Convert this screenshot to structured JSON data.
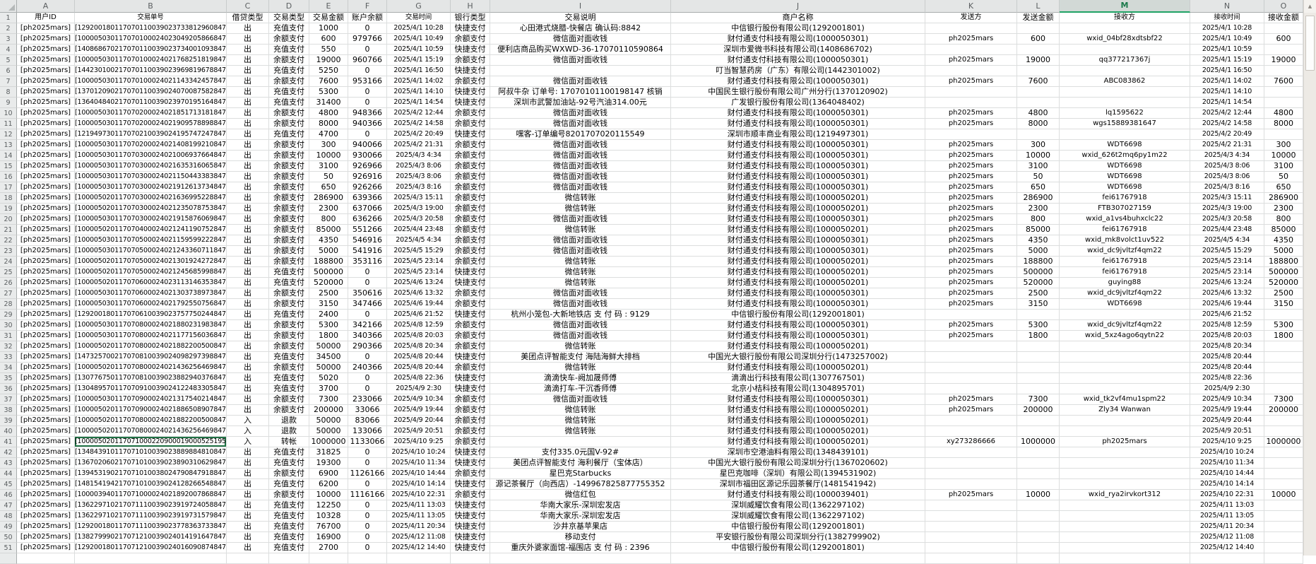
{
  "app": {
    "type": "spreadsheet-grid"
  },
  "icons": {
    "scroll_up": "▲",
    "select_all_triangle": "◢"
  },
  "colors": {
    "selected_column_accent": "#21A366",
    "active_cell_border": "#217346",
    "header_bg": "#E4E6E6",
    "gridline": "#DCDEDE"
  },
  "selection": {
    "highlighted_column": "M",
    "active_cell": "B41"
  },
  "columns": [
    {
      "letter": "A",
      "label": "用户ID"
    },
    {
      "letter": "B",
      "label": "交易单号"
    },
    {
      "letter": "C",
      "label": "借贷类型"
    },
    {
      "letter": "D",
      "label": "交易类型"
    },
    {
      "letter": "E",
      "label": "交易金额"
    },
    {
      "letter": "F",
      "label": "账户余额"
    },
    {
      "letter": "G",
      "label": "交易时间"
    },
    {
      "letter": "H",
      "label": "银行类型"
    },
    {
      "letter": "I",
      "label": "交易说明"
    },
    {
      "letter": "J",
      "label": "商户名称"
    },
    {
      "letter": "K",
      "label": "发送方"
    },
    {
      "letter": "L",
      "label": "发送金额"
    },
    {
      "letter": "M",
      "label": "接收方"
    },
    {
      "letter": "N",
      "label": "接收时间"
    },
    {
      "letter": "O",
      "label": "接收金额"
    }
  ],
  "first_data_row_number": 2,
  "rows": [
    [
      "[ph2025mars]",
      "[129200180117070110039023733812960847]",
      "出",
      "充值支付",
      "1000",
      "0",
      "2025/4/1 10:28",
      "快捷支付",
      "心田港式烧腊-快餐店 确认码:8842",
      "中信银行股份有限公司(1292001801)",
      "",
      "",
      "",
      "2025/4/1 10:28",
      ""
    ],
    [
      "[ph2025mars]",
      "[100005030117070100024023049205866847]",
      "出",
      "余额支付",
      "600",
      "979766",
      "2025/4/1 10:49",
      "余额支付",
      "微信面对面收钱",
      "财付通支付科技有限公司(1000050301)",
      "ph2025mars",
      "600",
      "wxid_04bf28xdtsbf22",
      "2025/4/1 10:49",
      "600"
    ],
    [
      "[ph2025mars]",
      "[140868670217070110039023734001093847]",
      "出",
      "充值支付",
      "550",
      "0",
      "2025/4/1 10:59",
      "快捷支付",
      "便利店商品购买WXWD-36-17070110590864",
      "深圳市爱微书科技有限公司(1408686702)",
      "",
      "",
      "",
      "2025/4/1 10:59",
      ""
    ],
    [
      "[ph2025mars]",
      "[100005030117070100024021768251819847]",
      "出",
      "余额支付",
      "19000",
      "960766",
      "2025/4/1 15:19",
      "余额支付",
      "微信面对面收钱",
      "财付通支付科技有限公司(1000050301)",
      "ph2025mars",
      "19000",
      "qq377217367j",
      "2025/4/1 15:19",
      "19000"
    ],
    [
      "[ph2025mars]",
      "[144230100217070110039023969819678847]",
      "出",
      "充值支付",
      "5250",
      "0",
      "2025/4/1 16:50",
      "快捷支付",
      "",
      "叮当智慧药房（广东）有限公司(1442301002)",
      "",
      "",
      "",
      "2025/4/1 16:50",
      ""
    ],
    [
      "[ph2025mars]",
      "[100005030117070100024021143342457847]",
      "出",
      "余额支付",
      "7600",
      "953166",
      "2025/4/1 14:02",
      "余额支付",
      "微信面对面收钱",
      "财付通支付科技有限公司(1000050301)",
      "ph2025mars",
      "7600",
      "ABC083862",
      "2025/4/1 14:02",
      "7600"
    ],
    [
      "[ph2025mars]",
      "[137012090217070110039024070087582847]",
      "出",
      "充值支付",
      "5300",
      "0",
      "2025/4/1 14:10",
      "快捷支付",
      "阿叔牛杂 订单号: 17070101100198147 核销",
      "中国民生银行股份有限公司广州分行(1370120902)",
      "",
      "",
      "",
      "2025/4/1 14:10",
      ""
    ],
    [
      "[ph2025mars]",
      "[136404840217070110039023970195164847]",
      "出",
      "充值支付",
      "31400",
      "0",
      "2025/4/1 14:54",
      "快捷支付",
      "深圳市武警加油站-92号汽油314.00元",
      "广发银行股份有限公司(1364048402)",
      "",
      "",
      "",
      "2025/4/1 14:54",
      ""
    ],
    [
      "[ph2025mars]",
      "[100005030117070200024021851713181847]",
      "出",
      "余额支付",
      "4800",
      "948366",
      "2025/4/2 12:44",
      "余额支付",
      "微信面对面收钱",
      "财付通支付科技有限公司(1000050301)",
      "ph2025mars",
      "4800",
      "lq1595622",
      "2025/4/2 12:44",
      "4800"
    ],
    [
      "[ph2025mars]",
      "[100005030117070200024021909578898847]",
      "出",
      "余额支付",
      "8000",
      "940366",
      "2025/4/2 14:58",
      "余额支付",
      "微信面对面收钱",
      "财付通支付科技有限公司(1000050301)",
      "ph2025mars",
      "8000",
      "wgs15889381647",
      "2025/4/2 14:58",
      "8000"
    ],
    [
      "[ph2025mars]",
      "[121949730117070210039024195747247847]",
      "出",
      "充值支付",
      "4700",
      "0",
      "2025/4/2 20:49",
      "快捷支付",
      "嘿客-订单编号8201707020115549",
      "深圳市顺丰商业有限公司(1219497301)",
      "",
      "",
      "",
      "2025/4/2 20:49",
      ""
    ],
    [
      "[ph2025mars]",
      "[100005030117070200024021408199210847]",
      "出",
      "余额支付",
      "300",
      "940066",
      "2025/4/2 21:31",
      "余额支付",
      "微信面对面收钱",
      "财付通支付科技有限公司(1000050301)",
      "ph2025mars",
      "300",
      "WDT6698",
      "2025/4/2 21:31",
      "300"
    ],
    [
      "[ph2025mars]",
      "[100005030117070300024021006937664847]",
      "出",
      "余额支付",
      "10000",
      "930066",
      "2025/4/3 4:34",
      "余额支付",
      "微信面对面收钱",
      "财付通支付科技有限公司(1000050301)",
      "ph2025mars",
      "10000",
      "wxid_626t2mq6py1m22",
      "2025/4/3 4:34",
      "10000"
    ],
    [
      "[ph2025mars]",
      "[100005030117070300024021635316065847]",
      "出",
      "余额支付",
      "3100",
      "926966",
      "2025/4/3 8:06",
      "余额支付",
      "微信面对面收钱",
      "财付通支付科技有限公司(1000050301)",
      "ph2025mars",
      "3100",
      "WDT6698",
      "2025/4/3 8:06",
      "3100"
    ],
    [
      "[ph2025mars]",
      "[100005030117070300024021150443383847]",
      "出",
      "余额支付",
      "50",
      "926916",
      "2025/4/3 8:06",
      "余额支付",
      "微信面对面收钱",
      "财付通支付科技有限公司(1000050301)",
      "ph2025mars",
      "50",
      "WDT6698",
      "2025/4/3 8:06",
      "50"
    ],
    [
      "[ph2025mars]",
      "[100005030117070300024021912613734847]",
      "出",
      "余额支付",
      "650",
      "926266",
      "2025/4/3 8:16",
      "余额支付",
      "微信面对面收钱",
      "财付通支付科技有限公司(1000050301)",
      "ph2025mars",
      "650",
      "WDT6698",
      "2025/4/3 8:16",
      "650"
    ],
    [
      "[ph2025mars]",
      "[100005020117070300024021636995228847]",
      "出",
      "余额支付",
      "286900",
      "639366",
      "2025/4/3 15:11",
      "余额支付",
      "微信转账",
      "财付通支付科技有限公司(1000050201)",
      "ph2025mars",
      "286900",
      "fei61767918",
      "2025/4/3 15:11",
      "286900"
    ],
    [
      "[ph2025mars]",
      "[100005020117070300024021235078753847]",
      "出",
      "余额支付",
      "2300",
      "637066",
      "2025/4/3 19:00",
      "余额支付",
      "微信转账",
      "财付通支付科技有限公司(1000050201)",
      "ph2025mars",
      "2300",
      "FTB307027159",
      "2025/4/3 19:00",
      "2300"
    ],
    [
      "[ph2025mars]",
      "[100005030117070300024021915876069847]",
      "出",
      "余额支付",
      "800",
      "636266",
      "2025/4/3 20:58",
      "余额支付",
      "微信面对面收钱",
      "财付通支付科技有限公司(1000050301)",
      "ph2025mars",
      "800",
      "wxid_a1vs4buhxclc22",
      "2025/4/3 20:58",
      "800"
    ],
    [
      "[ph2025mars]",
      "[100005020117070400024021241190752847]",
      "出",
      "余额支付",
      "85000",
      "551266",
      "2025/4/4 23:48",
      "余额支付",
      "微信转账",
      "财付通支付科技有限公司(1000050201)",
      "ph2025mars",
      "85000",
      "fei61767918",
      "2025/4/4 23:48",
      "85000"
    ],
    [
      "[ph2025mars]",
      "[100005030117070500024021159599222847]",
      "出",
      "余额支付",
      "4350",
      "546916",
      "2025/4/5 4:34",
      "余额支付",
      "微信面对面收钱",
      "财付通支付科技有限公司(1000050301)",
      "ph2025mars",
      "4350",
      "wxid_mk8volct1uv522",
      "2025/4/5 4:34",
      "4350"
    ],
    [
      "[ph2025mars]",
      "[100005030117070500024021243360711847]",
      "出",
      "余额支付",
      "5000",
      "541916",
      "2025/4/5 15:29",
      "余额支付",
      "微信面对面收钱",
      "财付通支付科技有限公司(1000050301)",
      "ph2025mars",
      "5000",
      "wxid_dc9jvltzf4qm22",
      "2025/4/5 15:29",
      "5000"
    ],
    [
      "[ph2025mars]",
      "[100005020117070500024021301924272847]",
      "出",
      "余额支付",
      "188800",
      "353116",
      "2025/4/5 23:14",
      "余额支付",
      "微信转账",
      "财付通支付科技有限公司(1000050201)",
      "ph2025mars",
      "188800",
      "fei61767918",
      "2025/4/5 23:14",
      "188800"
    ],
    [
      "[ph2025mars]",
      "[100005020117070500024021245685998847]",
      "出",
      "充值支付",
      "500000",
      "0",
      "2025/4/5 23:14",
      "快捷支付",
      "微信转账",
      "财付通支付科技有限公司(1000050201)",
      "ph2025mars",
      "500000",
      "fei61767918",
      "2025/4/5 23:14",
      "500000"
    ],
    [
      "[ph2025mars]",
      "[100005020117070600024023113146353847]",
      "出",
      "充值支付",
      "520000",
      "0",
      "2025/4/6 13:24",
      "快捷支付",
      "微信转账",
      "财付通支付科技有限公司(1000050201)",
      "ph2025mars",
      "520000",
      "guying88",
      "2025/4/6 13:24",
      "520000"
    ],
    [
      "[ph2025mars]",
      "[100005030117070600024021303738973847]",
      "出",
      "余额支付",
      "2500",
      "350616",
      "2025/4/6 13:32",
      "余额支付",
      "微信面对面收钱",
      "财付通支付科技有限公司(1000050301)",
      "ph2025mars",
      "2500",
      "wxid_dc9jvltzf4qm22",
      "2025/4/6 13:32",
      "2500"
    ],
    [
      "[ph2025mars]",
      "[100005030117070600024021792550756847]",
      "出",
      "余额支付",
      "3150",
      "347466",
      "2025/4/6 19:44",
      "余额支付",
      "微信面对面收钱",
      "财付通支付科技有限公司(1000050301)",
      "ph2025mars",
      "3150",
      "WDT6698",
      "2025/4/6 19:44",
      "3150"
    ],
    [
      "[ph2025mars]",
      "[129200180117070610039023757750244847]",
      "出",
      "充值支付",
      "2400",
      "0",
      "2025/4/6 21:52",
      "快捷支付",
      "杭州小笼包-大新地铁店 支 付 码 : 9129",
      "中信银行股份有限公司(1292001801)",
      "",
      "",
      "",
      "2025/4/6 21:52",
      ""
    ],
    [
      "[ph2025mars]",
      "[100005030117070800024021880231983847]",
      "出",
      "余额支付",
      "5300",
      "342166",
      "2025/4/8 12:59",
      "余额支付",
      "微信面对面收钱",
      "财付通支付科技有限公司(1000050301)",
      "ph2025mars",
      "5300",
      "wxid_dc9jvltzf4qm22",
      "2025/4/8 12:59",
      "5300"
    ],
    [
      "[ph2025mars]",
      "[100005030117070800024021177156036847]",
      "出",
      "余额支付",
      "1800",
      "340366",
      "2025/4/8 20:03",
      "余额支付",
      "微信面对面收钱",
      "财付通支付科技有限公司(1000050301)",
      "ph2025mars",
      "1800",
      "wxid_5xz4ago6qytn22",
      "2025/4/8 20:03",
      "1800"
    ],
    [
      "[ph2025mars]",
      "[100005020117070800024021882200500847]",
      "出",
      "余额支付",
      "50000",
      "290366",
      "2025/4/8 20:34",
      "余额支付",
      "微信转账",
      "财付通支付科技有限公司(1000050201)",
      "",
      "",
      "",
      "2025/4/8 20:34",
      ""
    ],
    [
      "[ph2025mars]",
      "[147325700217070810039024098297398847]",
      "出",
      "充值支付",
      "34500",
      "0",
      "2025/4/8 20:44",
      "快捷支付",
      "美团点评智能支付 海陆海鲜大排档",
      "中国光大银行股份有限公司深圳分行(1473257002)",
      "",
      "",
      "",
      "2025/4/8 20:44",
      ""
    ],
    [
      "[ph2025mars]",
      "[100005020117070800024021436256469847]",
      "出",
      "余额支付",
      "50000",
      "240366",
      "2025/4/8 20:44",
      "余额支付",
      "微信转账",
      "财付通支付科技有限公司(1000050201)",
      "",
      "",
      "",
      "2025/4/8 20:44",
      ""
    ],
    [
      "[ph2025mars]",
      "[130776750117070810039023882940376847]",
      "出",
      "充值支付",
      "5020",
      "0",
      "2025/4/8 22:36",
      "快捷支付",
      "滴滴快车-阙加晟师傅",
      "滴滴出行科技有限公司(1307767501)",
      "",
      "",
      "",
      "2025/4/8 22:36",
      ""
    ],
    [
      "[ph2025mars]",
      "[130489570117070910039024122483305847]",
      "出",
      "充值支付",
      "3700",
      "0",
      "2025/4/9 2:30",
      "快捷支付",
      "滴滴打车-干沉香师傅",
      "北京小桔科技有限公司(1304895701)",
      "",
      "",
      "",
      "2025/4/9 2:30",
      ""
    ],
    [
      "[ph2025mars]",
      "[100005030117070900024021317540214847]",
      "出",
      "余额支付",
      "7300",
      "233066",
      "2025/4/9 10:34",
      "余额支付",
      "微信面对面收钱",
      "财付通支付科技有限公司(1000050301)",
      "ph2025mars",
      "7300",
      "wxid_tk2vf4mu1spm22",
      "2025/4/9 10:34",
      "7300"
    ],
    [
      "[ph2025mars]",
      "[100005020117070900024021886508907847]",
      "出",
      "余额支付",
      "200000",
      "33066",
      "2025/4/9 19:44",
      "余额支付",
      "微信转账",
      "财付通支付科技有限公司(1000050201)",
      "ph2025mars",
      "200000",
      "Zly34 Wanwan",
      "2025/4/9 19:44",
      "200000"
    ],
    [
      "[ph2025mars]",
      "[100005020117070800024021882200500847]",
      "入",
      "退款",
      "50000",
      "83066",
      "2025/4/9 20:44",
      "余额支付",
      "微信转账",
      "财付通支付科技有限公司(1000050201)",
      "",
      "",
      "",
      "2025/4/9 20:44",
      ""
    ],
    [
      "[ph2025mars]",
      "[100005020117070800024021436256469847]",
      "入",
      "退款",
      "50000",
      "133066",
      "2025/4/9 20:51",
      "余额支付",
      "微信转账",
      "财付通支付科技有限公司(1000050201)",
      "",
      "",
      "",
      "2025/4/9 20:51",
      ""
    ],
    [
      "[ph2025mars]",
      "[1000050201170710002209000190005251956847]",
      "入",
      "转帐",
      "1000000",
      "1133066",
      "2025/4/10 9:25",
      "余额支付",
      "",
      "财付通支付科技有限公司(1000050201)",
      "xy273286666",
      "1000000",
      "ph2025mars",
      "2025/4/10 9:25",
      "1000000"
    ],
    [
      "[ph2025mars]",
      "[134843910117071010039023889884810847]",
      "出",
      "充值支付",
      "31825",
      "0",
      "2025/4/10 10:24",
      "快捷支付",
      "支付335.0元国V-92#",
      "深圳市空港油料有限公司(1348439101)",
      "",
      "",
      "",
      "2025/4/10 10:24",
      ""
    ],
    [
      "[ph2025mars]",
      "[136702060217071010039023890310629847]",
      "出",
      "充值支付",
      "19300",
      "0",
      "2025/4/10 11:34",
      "快捷支付",
      "美团点评智能支付 海利餐厅（宝体店）",
      "中国光大银行股份有限公司深圳分行(1367020602)",
      "",
      "",
      "",
      "2025/4/10 11:34",
      ""
    ],
    [
      "[ph2025mars]",
      "[139453190217071010038024790847918847]",
      "出",
      "余额支付",
      "6900",
      "1126166",
      "2025/4/10 14:44",
      "余额支付",
      "星巴克Starbucks",
      "星巴克咖啡（深圳）有限公司(1394531902)",
      "",
      "",
      "",
      "2025/4/10 14:44",
      ""
    ],
    [
      "[ph2025mars]",
      "[148154194217071010039024128266548847]",
      "出",
      "充值支付",
      "6200",
      "0",
      "2025/4/10 14:14",
      "快捷支付",
      "源记茶餐厅（向西店）-149967825877755352",
      "深圳市福田区源记乐园茶餐厅(1481541942)",
      "",
      "",
      "",
      "2025/4/10 14:14",
      ""
    ],
    [
      "[ph2025mars]",
      "[100003940117071000024021892007868847]",
      "出",
      "余额支付",
      "10000",
      "1116166",
      "2025/4/10 22:31",
      "余额支付",
      "微信红包",
      "财付通支付科技有限公司(1000039401)",
      "ph2025mars",
      "10000",
      "wxid_rya2irvkort312",
      "2025/4/10 22:31",
      "10000"
    ],
    [
      "[ph2025mars]",
      "[136229710217071110039023919724058847]",
      "出",
      "充值支付",
      "12250",
      "0",
      "2025/4/11 13:03",
      "快捷支付",
      "华南大家乐-深圳宏发店",
      "深圳威耀饮食有限公司(1362297102)",
      "",
      "",
      "",
      "2025/4/11 13:03",
      ""
    ],
    [
      "[ph2025mars]",
      "[136229710217071110039023919731579847]",
      "出",
      "充值支付",
      "10328",
      "0",
      "2025/4/11 13:05",
      "快捷支付",
      "华南大家乐-深圳宏发店",
      "深圳威耀饮食有限公司(1362297102)",
      "",
      "",
      "",
      "2025/4/11 13:05",
      ""
    ],
    [
      "[ph2025mars]",
      "[129200180117071110039023778363733847]",
      "出",
      "充值支付",
      "76700",
      "0",
      "2025/4/11 20:34",
      "快捷支付",
      "沙井京基苹果店",
      "中信银行股份有限公司(1292001801)",
      "",
      "",
      "",
      "2025/4/11 20:34",
      ""
    ],
    [
      "[ph2025mars]",
      "[138279990217071210039024014191647847]",
      "出",
      "充值支付",
      "16900",
      "0",
      "2025/4/12 11:08",
      "快捷支付",
      "移动支付",
      "平安银行股份有限公司深圳分行(1382799902)",
      "",
      "",
      "",
      "2025/4/12 11:08",
      ""
    ],
    [
      "[ph2025mars]",
      "[129200180117071210039024016090874847]",
      "出",
      "充值支付",
      "2700",
      "0",
      "2025/4/12 14:40",
      "快捷支付",
      "重庆外婆家面馆-福围店 支 付 码 : 2396",
      "中信银行股份有限公司(1292001801)",
      "",
      "",
      "",
      "2025/4/12 14:40",
      ""
    ]
  ]
}
